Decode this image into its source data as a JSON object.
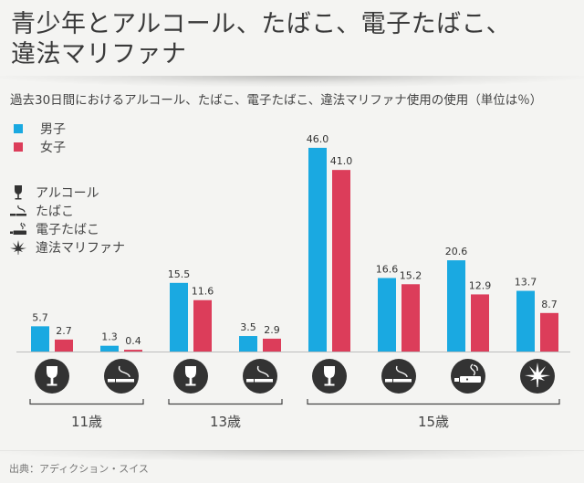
{
  "header": {
    "title_line1": "青少年とアルコール、たばこ、電子たばこ、",
    "title_line2": "違法マリファナ"
  },
  "subtitle": "過去30日間におけるアルコール、たばこ、電子たばこ、違法マリファナ使用の使用（単位は％）",
  "legend": {
    "series": [
      {
        "label": "男子",
        "color": "#1aa9e1"
      },
      {
        "label": "女子",
        "color": "#dc3d5a"
      }
    ],
    "icons": [
      {
        "icon": "wine-glass-icon",
        "label": "アルコール"
      },
      {
        "icon": "cigarette-icon",
        "label": "たばこ"
      },
      {
        "icon": "e-cigarette-icon",
        "label": "電子たばこ"
      },
      {
        "icon": "cannabis-leaf-icon",
        "label": "違法マリファナ"
      }
    ]
  },
  "source": "出典：アディクション・スイス",
  "colors": {
    "boys": "#1aa9e1",
    "girls": "#dc3d5a",
    "icon_bg": "#333333",
    "axis": "#bdbdbd",
    "bracket": "#444444"
  },
  "chart_data": {
    "type": "bar",
    "title": "青少年とアルコール、たばこ、電子たばこ、違法マリファナ",
    "subtitle": "過去30日間におけるアルコール、たばこ、電子たばこ、違法マリファナ使用の使用（単位は％）",
    "xlabel": "",
    "ylabel": "%",
    "ylim": [
      0,
      50
    ],
    "grid": false,
    "legend_position": "top-left",
    "categories": [
      {
        "age": "11歳",
        "substance": "アルコール",
        "icon": "wine-glass-icon"
      },
      {
        "age": "11歳",
        "substance": "たばこ",
        "icon": "cigarette-icon"
      },
      {
        "age": "13歳",
        "substance": "アルコール",
        "icon": "wine-glass-icon"
      },
      {
        "age": "13歳",
        "substance": "たばこ",
        "icon": "cigarette-icon"
      },
      {
        "age": "15歳",
        "substance": "アルコール",
        "icon": "wine-glass-icon"
      },
      {
        "age": "15歳",
        "substance": "たばこ",
        "icon": "cigarette-icon"
      },
      {
        "age": "15歳",
        "substance": "電子たばこ",
        "icon": "e-cigarette-icon"
      },
      {
        "age": "15歳",
        "substance": "違法マリファナ",
        "icon": "cannabis-leaf-icon"
      }
    ],
    "groups": [
      {
        "label": "11歳",
        "start": 0,
        "end": 1
      },
      {
        "label": "13歳",
        "start": 2,
        "end": 3
      },
      {
        "label": "15歳",
        "start": 4,
        "end": 7
      }
    ],
    "series": [
      {
        "name": "男子",
        "values": [
          5.7,
          1.3,
          15.5,
          3.5,
          46.0,
          16.6,
          20.6,
          13.7
        ],
        "labels": [
          "5.7",
          "1.3",
          "15.5",
          "3.5",
          "46.0",
          "16.6",
          "20.6",
          "13.7"
        ]
      },
      {
        "name": "女子",
        "values": [
          2.7,
          0.4,
          11.6,
          2.9,
          41.0,
          15.2,
          12.9,
          8.7
        ],
        "labels": [
          "2.7",
          "0.4",
          "11.6",
          "2.9",
          "41.0",
          "15.2",
          "12.9",
          "8.7"
        ]
      }
    ]
  }
}
